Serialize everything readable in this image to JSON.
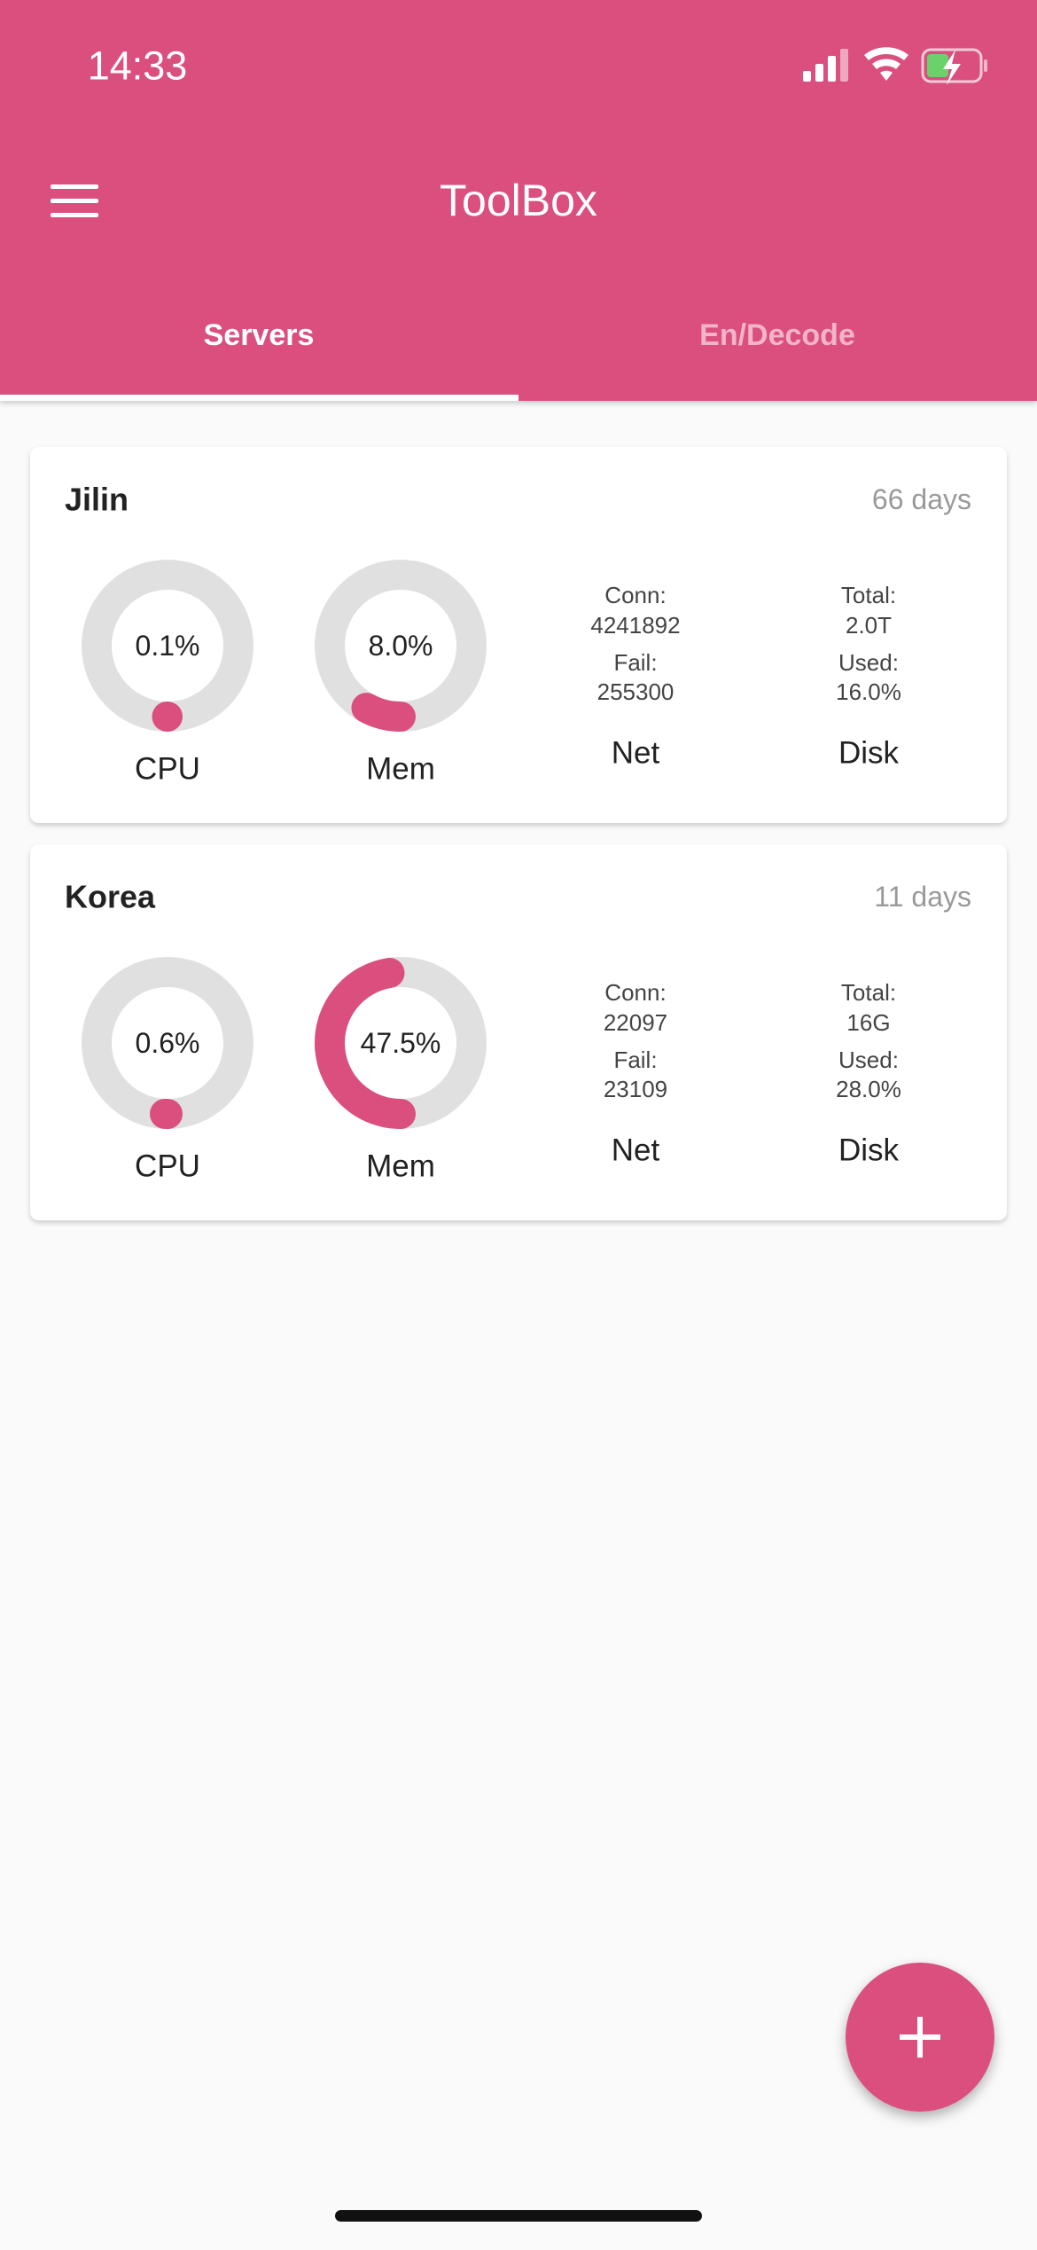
{
  "status_bar": {
    "time": "14:33"
  },
  "header": {
    "title": "ToolBox"
  },
  "tabs": [
    "Servers",
    "En/Decode"
  ],
  "labels": {
    "cpu": "CPU",
    "mem": "Mem",
    "net": "Net",
    "disk": "Disk",
    "conn": "Conn:",
    "fail": "Fail:",
    "total": "Total:",
    "used": "Used:"
  },
  "servers": [
    {
      "name": "Jilin",
      "uptime": "66 days",
      "cpu": {
        "value": 0.1,
        "label": "0.1%"
      },
      "mem": {
        "value": 8.0,
        "label": "8.0%"
      },
      "conn": "4241892",
      "fail": "255300",
      "total": "2.0T",
      "used": "16.0%"
    },
    {
      "name": "Korea",
      "uptime": "11 days",
      "cpu": {
        "value": 0.6,
        "label": "0.6%"
      },
      "mem": {
        "value": 47.5,
        "label": "47.5%"
      },
      "conn": "22097",
      "fail": "23109",
      "total": "16G",
      "used": "28.0%"
    }
  ]
}
